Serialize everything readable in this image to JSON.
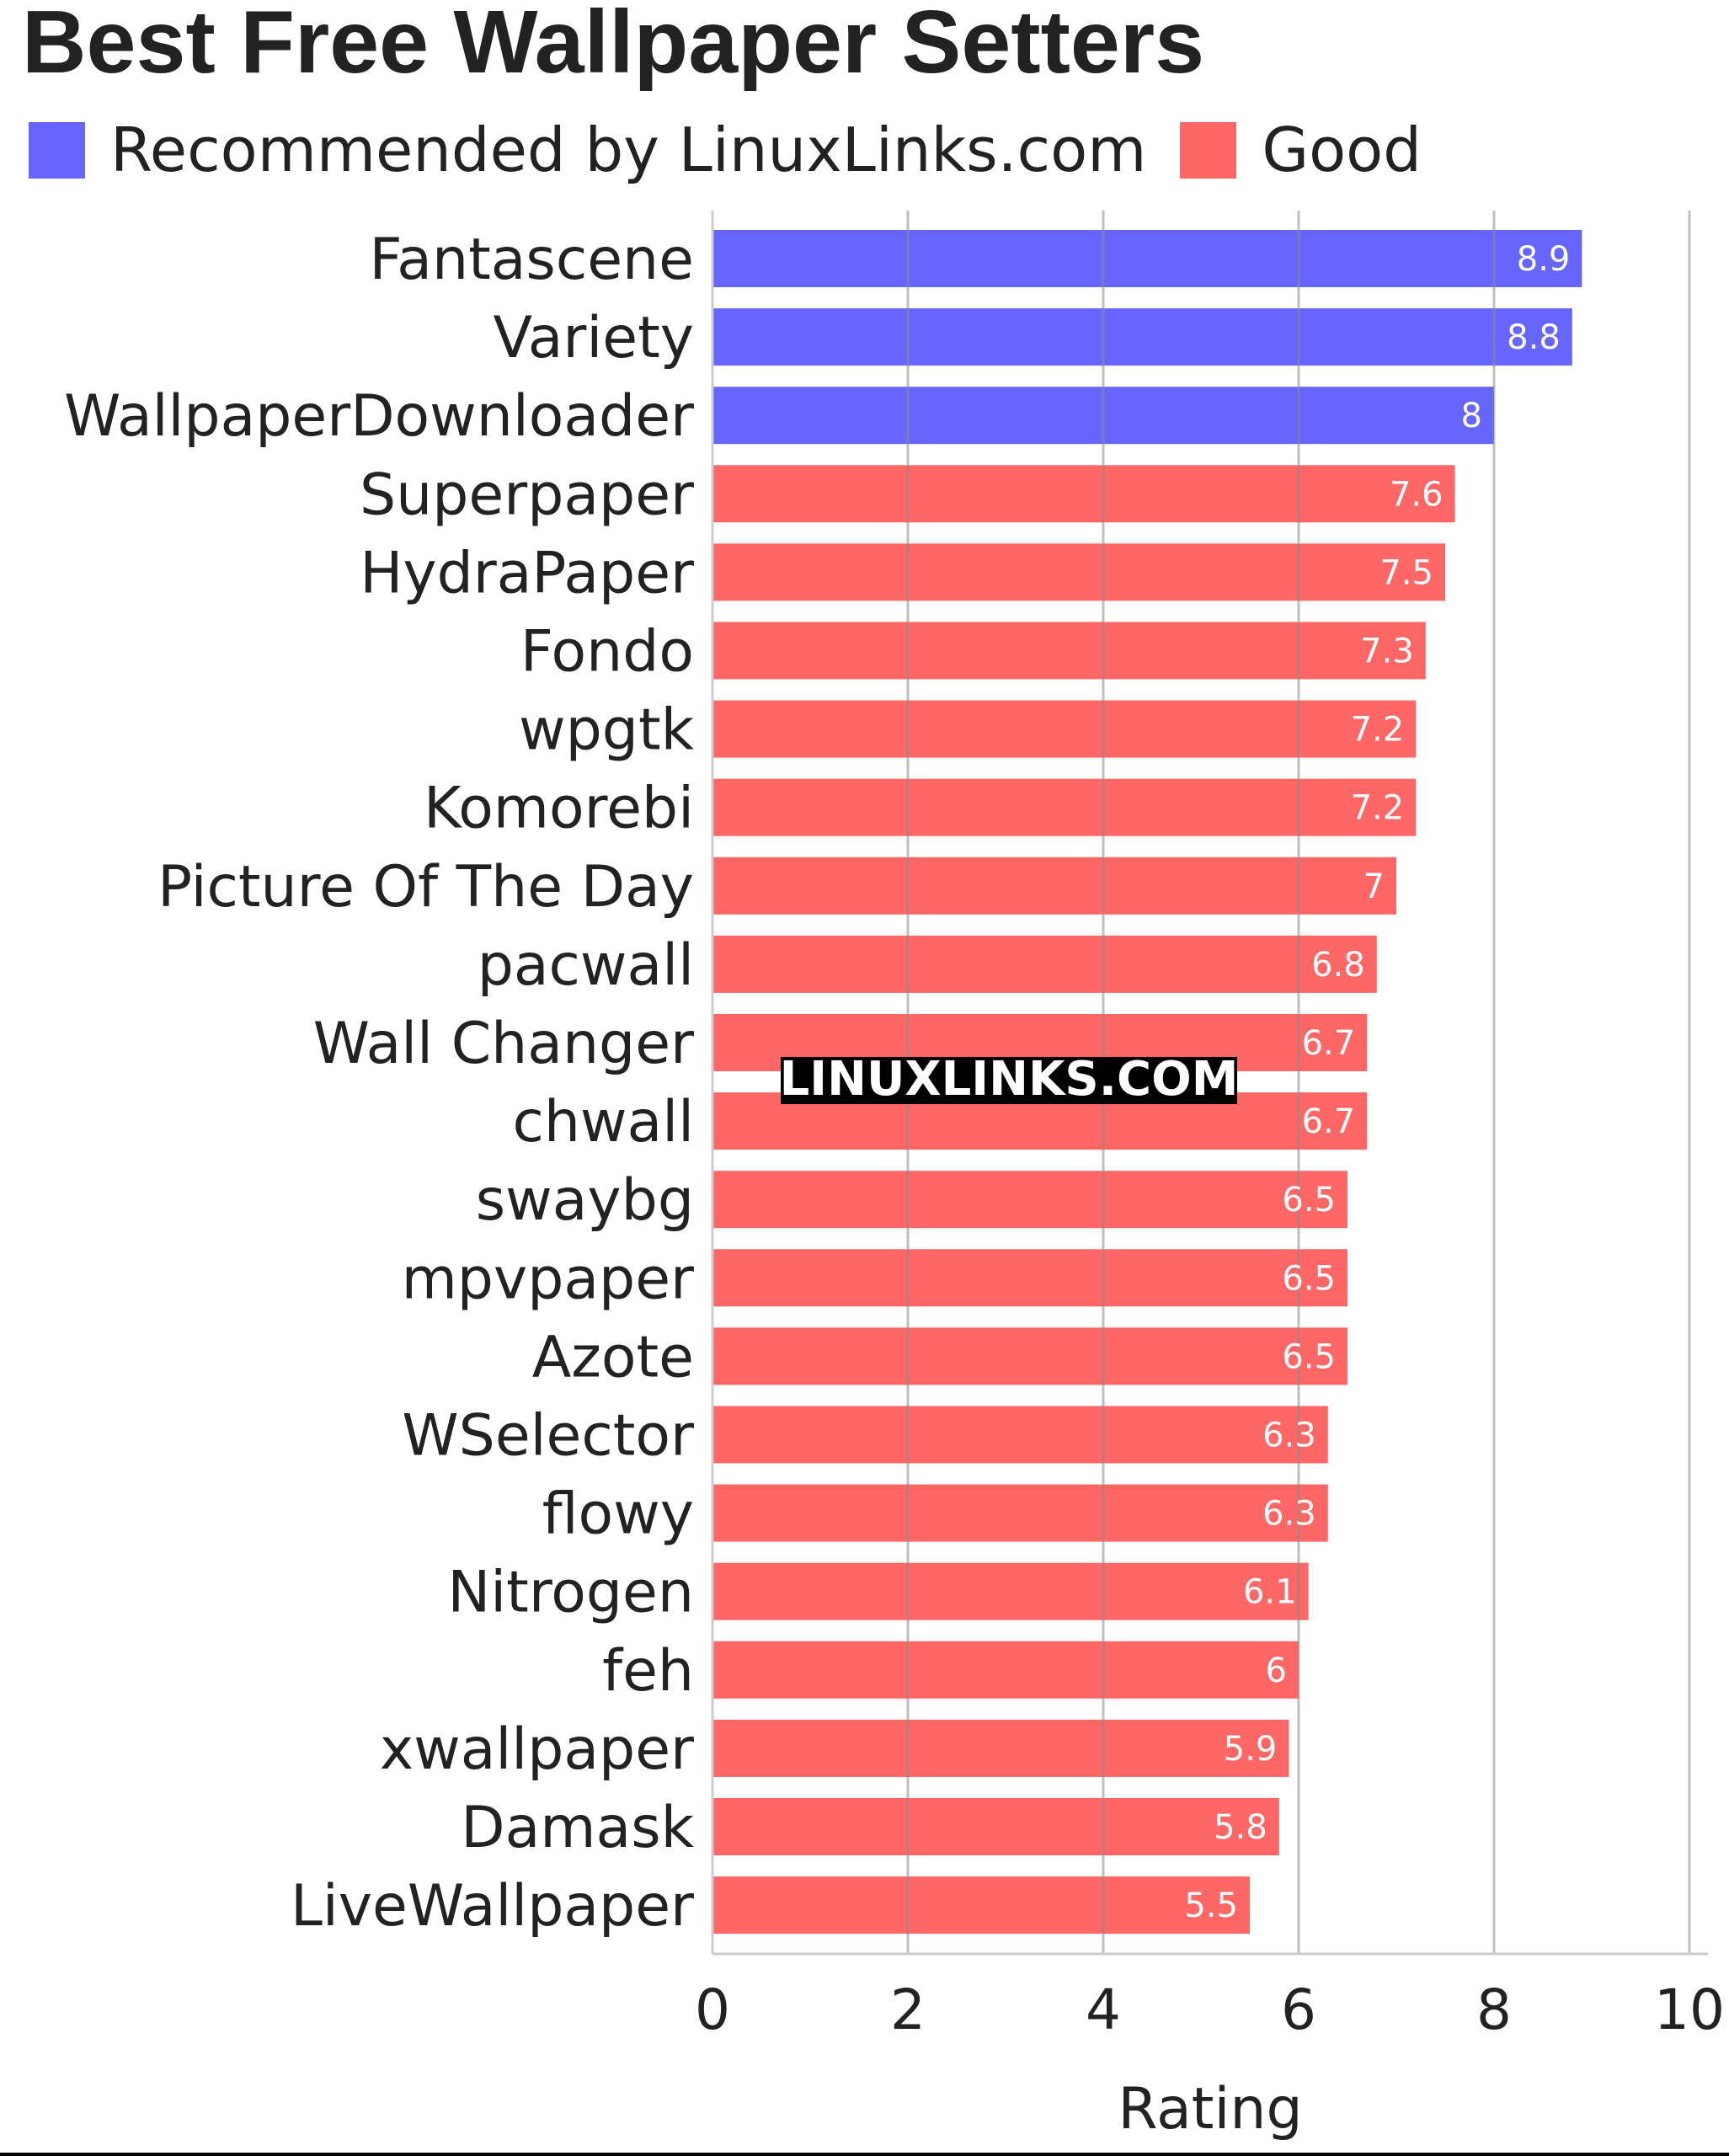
{
  "colors": {
    "recommended": "#6666ff",
    "good": "#ff6666",
    "grid": "#b8b8b8",
    "text": "#222222"
  },
  "chart_data": {
    "type": "bar",
    "orientation": "horizontal",
    "title": "Best Free Wallpaper Setters",
    "xlabel": "Rating",
    "ylabel": "",
    "xlim": [
      0,
      10
    ],
    "ticks": [
      "0",
      "2",
      "4",
      "6",
      "8",
      "10"
    ],
    "grid": true,
    "legend_position": "top-left",
    "legend": [
      {
        "name": "Recommended by LinuxLinks.com",
        "color": "#6666ff"
      },
      {
        "name": "Good",
        "color": "#ff6666"
      }
    ],
    "categories": [
      "Fantascene",
      "Variety",
      "WallpaperDownloader",
      "Superpaper",
      "HydraPaper",
      "Fondo",
      "wpgtk",
      "Komorebi",
      "Picture Of The Day",
      "pacwall",
      "Wall Changer",
      "chwall",
      "swaybg",
      "mpvpaper",
      "Azote",
      "WSelector",
      "flowy",
      "Nitrogen",
      "feh",
      "xwallpaper",
      "Damask",
      "LiveWallpaper"
    ],
    "values": [
      8.9,
      8.8,
      8,
      7.6,
      7.5,
      7.3,
      7.2,
      7.2,
      7,
      6.8,
      6.7,
      6.7,
      6.5,
      6.5,
      6.5,
      6.3,
      6.3,
      6.1,
      6,
      5.9,
      5.8,
      5.5
    ],
    "value_labels": [
      "8.9",
      "8.8",
      "8",
      "7.6",
      "7.5",
      "7.3",
      "7.2",
      "7.2",
      "7",
      "6.8",
      "6.7",
      "6.7",
      "6.5",
      "6.5",
      "6.5",
      "6.3",
      "6.3",
      "6.1",
      "6",
      "5.9",
      "5.8",
      "5.5"
    ],
    "groups": [
      "Recommended by LinuxLinks.com",
      "Recommended by LinuxLinks.com",
      "Recommended by LinuxLinks.com",
      "Good",
      "Good",
      "Good",
      "Good",
      "Good",
      "Good",
      "Good",
      "Good",
      "Good",
      "Good",
      "Good",
      "Good",
      "Good",
      "Good",
      "Good",
      "Good",
      "Good",
      "Good",
      "Good"
    ]
  },
  "watermark": "LINUXLINKS.COM"
}
